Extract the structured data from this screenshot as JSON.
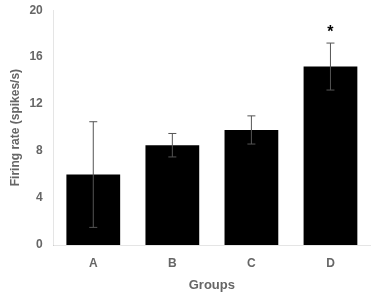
{
  "chart_data": {
    "type": "bar",
    "categories": [
      "A",
      "B",
      "C",
      "D"
    ],
    "values": [
      6.0,
      8.5,
      9.8,
      15.2
    ],
    "errors": [
      4.5,
      1.0,
      1.2,
      2.0
    ],
    "color": "#000000",
    "xlabel": "Groups",
    "ylabel": "Firing rate (spikes/s)",
    "ylim": [
      0,
      20
    ],
    "yticks": [
      0,
      4,
      8,
      12,
      16,
      20
    ],
    "annotations": [
      {
        "text": "*",
        "category": "D"
      }
    ],
    "grid": false
  }
}
